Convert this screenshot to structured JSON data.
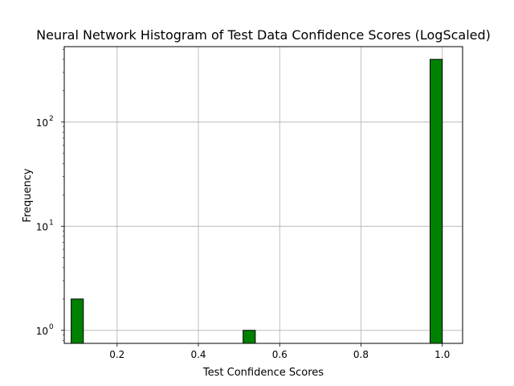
{
  "chart_data": {
    "type": "bar",
    "title": "Neural Network Histogram of Test Data Confidence Scores (LogScaled)",
    "xlabel": "Test Confidence Scores",
    "ylabel": "Frequency",
    "xlim": [
      0.07,
      1.05
    ],
    "ylim": [
      0.75,
      530
    ],
    "y_scale": "log",
    "grid": true,
    "bar_color": "#008000",
    "edge_color": "#000000",
    "grid_color": "#b0b0b0",
    "bins": [
      {
        "x0": 0.087,
        "x1": 0.117,
        "count": 2
      },
      {
        "x0": 0.51,
        "x1": 0.54,
        "count": 1
      },
      {
        "x0": 0.97,
        "x1": 1.0,
        "count": 400
      }
    ],
    "x_ticks": [
      {
        "value": 0.2,
        "label": "0.2"
      },
      {
        "value": 0.4,
        "label": "0.4"
      },
      {
        "value": 0.6,
        "label": "0.6"
      },
      {
        "value": 0.8,
        "label": "0.8"
      },
      {
        "value": 1.0,
        "label": "1.0"
      }
    ],
    "y_ticks": [
      {
        "value": 1,
        "base": "10",
        "exp": "0"
      },
      {
        "value": 10,
        "base": "10",
        "exp": "1"
      },
      {
        "value": 100,
        "base": "10",
        "exp": "2"
      }
    ]
  }
}
